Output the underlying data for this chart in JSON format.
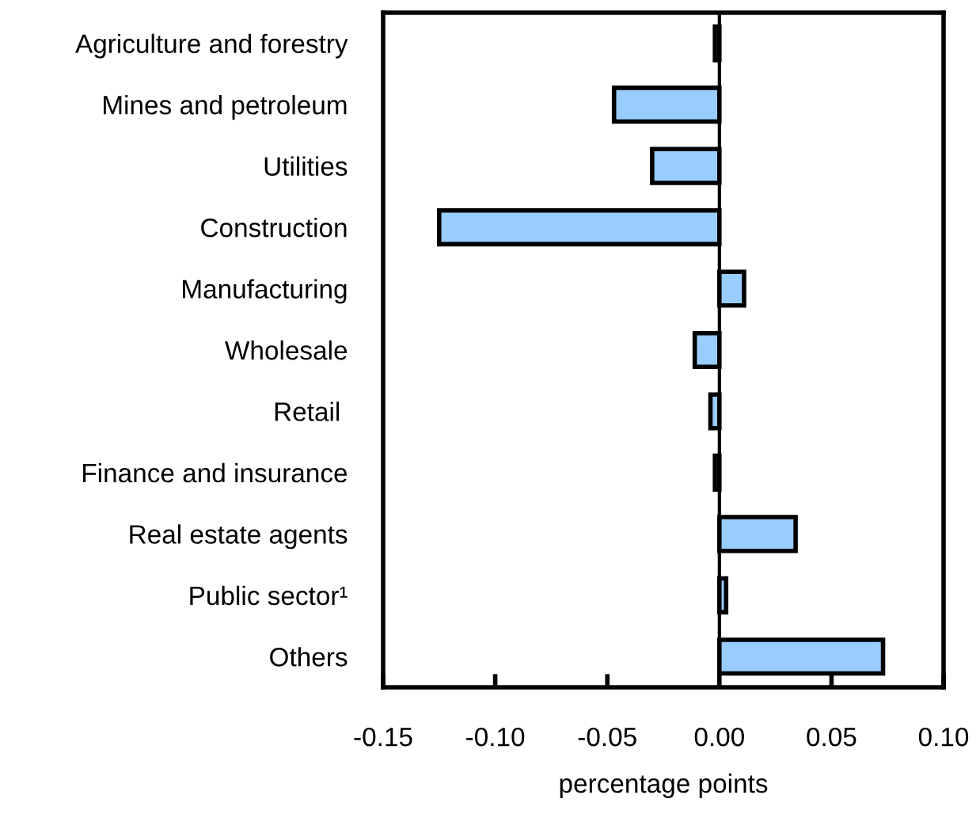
{
  "chart_data": {
    "type": "bar",
    "orientation": "horizontal",
    "xlabel": "percentage points",
    "categories": [
      "Agriculture and forestry",
      "Mines and petroleum",
      "Utilities",
      "Construction",
      "Manufacturing",
      "Wholesale",
      "Retail ",
      "Finance and insurance",
      "Real estate agents",
      "Public sector¹",
      "Others"
    ],
    "values": [
      -0.002,
      -0.047,
      -0.03,
      -0.125,
      0.011,
      -0.011,
      -0.004,
      -0.002,
      0.034,
      0.003,
      0.073
    ],
    "color": "#99ccff",
    "xlim": [
      -0.15,
      0.1
    ],
    "xticks": [
      {
        "value": -0.15,
        "label": "-0.15"
      },
      {
        "value": -0.1,
        "label": "-0.10"
      },
      {
        "value": -0.05,
        "label": "-0.05"
      },
      {
        "value": 0.0,
        "label": "0.00"
      },
      {
        "value": 0.05,
        "label": "0.05"
      },
      {
        "value": 0.1,
        "label": "0.10"
      }
    ],
    "ref_lines": [
      {
        "axis": "x",
        "value": 0.0,
        "color": "#000000"
      }
    ],
    "grid": false
  }
}
